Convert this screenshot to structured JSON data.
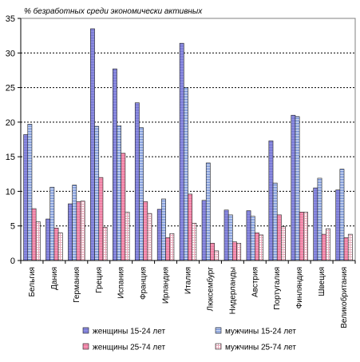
{
  "chart_data": {
    "type": "bar",
    "title": "% безработных среди экономически активных",
    "xlabel": "",
    "ylabel": "",
    "ylim": [
      0,
      35
    ],
    "yticks": [
      0,
      5,
      10,
      15,
      20,
      25,
      30,
      35
    ],
    "grid": true,
    "legend_position": "bottom",
    "categories": [
      "Бельгия",
      "Дания",
      "Германия",
      "Греция",
      "Испания",
      "Франция",
      "Ирландия",
      "Италия",
      "Люксембург",
      "Нидерланды",
      "Австрия",
      "Португалия",
      "Финляндия",
      "Швеция",
      "Великобритания"
    ],
    "series": [
      {
        "name": "женщины 15-24 лет",
        "color": "#8f8fe0",
        "values": [
          18.2,
          6.0,
          8.2,
          33.5,
          27.7,
          22.8,
          7.4,
          31.4,
          8.7,
          7.3,
          7.2,
          17.3,
          21.0,
          10.5,
          10.2
        ]
      },
      {
        "name": "мужчины 15-24 лет",
        "color": "#9fb6e8",
        "values": [
          19.7,
          10.6,
          10.9,
          19.4,
          19.5,
          19.2,
          8.9,
          25.0,
          14.1,
          6.6,
          6.4,
          11.2,
          20.8,
          11.9,
          13.2
        ]
      },
      {
        "name": "женщины 25-74 лет",
        "color": "#f59ab6",
        "values": [
          7.5,
          4.7,
          8.5,
          12.0,
          15.5,
          8.5,
          3.3,
          9.6,
          2.5,
          2.7,
          4.0,
          6.6,
          7.0,
          3.8,
          3.3
        ]
      },
      {
        "name": "мужчины 25-74 лет",
        "color": "#f6e1e6",
        "values": [
          5.6,
          4.0,
          8.6,
          4.8,
          7.0,
          6.8,
          3.9,
          5.4,
          1.4,
          2.5,
          3.7,
          4.9,
          7.0,
          4.6,
          3.8
        ]
      }
    ]
  }
}
